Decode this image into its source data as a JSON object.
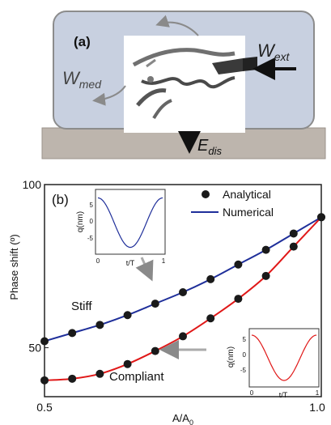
{
  "panel_a": {
    "label": "(a)",
    "w_ext": "W",
    "w_ext_sub": "ext",
    "w_med": "W",
    "w_med_sub": "med",
    "e_dis": "E",
    "e_dis_sub": "dis",
    "colors": {
      "box": "#c8d0e0",
      "box_stroke": "#808080",
      "ground": "#bdb5ad"
    }
  },
  "chart_data": {
    "type": "line",
    "panel_label": "(b)",
    "ylabel": "Phase shift (º)",
    "xlabel": "A/A",
    "xlabel_sub": "0",
    "xlim": [
      0.5,
      1.0
    ],
    "ylim": [
      35,
      100
    ],
    "xticks": [
      {
        "v": 0.5,
        "label": "0.5"
      },
      {
        "v": 1.0,
        "label": "1.0"
      }
    ],
    "yticks": [
      {
        "v": 50,
        "label": "50"
      },
      {
        "v": 100,
        "label": "100"
      }
    ],
    "legend": [
      {
        "label": "Analytical",
        "marker": "dot",
        "color": "#1a1a1a"
      },
      {
        "label": "Numerical",
        "marker": "line",
        "color": "#1f2f9a"
      }
    ],
    "series": [
      {
        "name": "Stiff",
        "color": "#1f2f9a",
        "x": [
          0.5,
          0.55,
          0.6,
          0.65,
          0.7,
          0.75,
          0.8,
          0.85,
          0.9,
          0.95,
          1.0
        ],
        "y": [
          52,
          54.5,
          57,
          60,
          63.5,
          67,
          71,
          75.5,
          80,
          85,
          90
        ]
      },
      {
        "name": "Compliant",
        "color": "#e01818",
        "x": [
          0.5,
          0.55,
          0.6,
          0.65,
          0.7,
          0.75,
          0.8,
          0.85,
          0.9,
          0.95,
          1.0
        ],
        "y": [
          40,
          40.5,
          42,
          45,
          49,
          53.5,
          59,
          65,
          72,
          81,
          90
        ]
      }
    ],
    "annotations": [
      {
        "text": "Stiff"
      },
      {
        "text": "Compliant"
      }
    ],
    "insets": [
      {
        "name": "stiff-inset",
        "ylabel": "q(nm)",
        "xlabel": "t/T",
        "xticks": [
          "0",
          "1"
        ],
        "yticks": [
          "5",
          "0",
          "-5"
        ],
        "color": "#1f2f9a"
      },
      {
        "name": "compliant-inset",
        "ylabel": "q(nm)",
        "xlabel": "t/T",
        "xticks": [
          "0",
          "1"
        ],
        "yticks": [
          "5",
          "0",
          "-5"
        ],
        "color": "#e01818"
      }
    ]
  }
}
